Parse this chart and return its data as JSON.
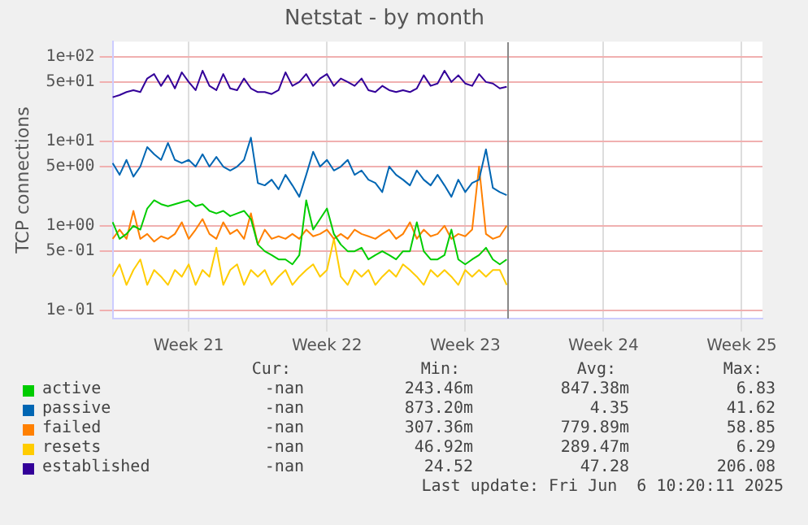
{
  "chart_data": {
    "type": "line",
    "title": "Netstat - by month",
    "ylabel": "TCP connections",
    "log": "y",
    "grid": true,
    "legend": "bottom",
    "marker": "none",
    "line_style": "solid",
    "ylim": [
      0.08,
      150
    ],
    "yticks": [
      {
        "value": 0.1,
        "label": "1e-01"
      },
      {
        "value": 0.5,
        "label": "5e-01"
      },
      {
        "value": 1,
        "label": "1e+00"
      },
      {
        "value": 5,
        "label": "5e+00"
      },
      {
        "value": 10,
        "label": "1e+01"
      },
      {
        "value": 50,
        "label": "5e+01"
      },
      {
        "value": 100,
        "label": "1e+02"
      }
    ],
    "categories": [
      null,
      null,
      null,
      null,
      null,
      null,
      null,
      null,
      null,
      null,
      null,
      "Week 21",
      null,
      null,
      null,
      null,
      null,
      null,
      null,
      null,
      null,
      null,
      null,
      null,
      null,
      null,
      null,
      null,
      null,
      null,
      null,
      "Week 22",
      null,
      null,
      null,
      null,
      null,
      null,
      null,
      null,
      null,
      null,
      null,
      null,
      null,
      null,
      null,
      null,
      null,
      null,
      null,
      "Week 23",
      null,
      null,
      null,
      null,
      null,
      null,
      null,
      null,
      null,
      null,
      null,
      null,
      null,
      null,
      null,
      null,
      null,
      null,
      null,
      "Week 24",
      null,
      null,
      null,
      null,
      null,
      null,
      null,
      null,
      null,
      null,
      null,
      null,
      null,
      null,
      null,
      null,
      null,
      null,
      null,
      "Week 25",
      null,
      null,
      null
    ],
    "series": [
      {
        "name": "active",
        "color": "#00cc00",
        "values": [
          1.1,
          0.7,
          0.8,
          1.0,
          0.9,
          1.6,
          2.0,
          1.8,
          1.7,
          1.8,
          1.9,
          2.0,
          1.7,
          1.8,
          1.5,
          1.4,
          1.5,
          1.3,
          1.4,
          1.5,
          1.2,
          0.6,
          0.5,
          0.45,
          0.4,
          0.4,
          0.35,
          0.45,
          2.0,
          0.9,
          1.2,
          1.6,
          0.8,
          0.6,
          0.5,
          0.5,
          0.55,
          0.4,
          0.45,
          0.5,
          0.45,
          0.4,
          0.5,
          0.5,
          1.1,
          0.5,
          0.4,
          0.4,
          0.45,
          0.9,
          0.4,
          0.35,
          0.4,
          0.45,
          0.55,
          0.4,
          0.35,
          0.4,
          null,
          null,
          null,
          null,
          null,
          null,
          null,
          null,
          null,
          null,
          null,
          null,
          null,
          null,
          null,
          null,
          null,
          null,
          null,
          null,
          null,
          null,
          null,
          null,
          null,
          null,
          null,
          null,
          null,
          null,
          null,
          null,
          null,
          null,
          null,
          null,
          null
        ]
      },
      {
        "name": "passive",
        "color": "#0066b3",
        "values": [
          5.5,
          4,
          6,
          3.8,
          5,
          8.5,
          7,
          6,
          9.5,
          6,
          5.5,
          6,
          5,
          7,
          5,
          6.5,
          5,
          4.5,
          5,
          6,
          11,
          3.2,
          3,
          3.5,
          2.7,
          4,
          3,
          2.2,
          4,
          7.5,
          5,
          6,
          4.5,
          5,
          6,
          4,
          4.5,
          3.5,
          3.2,
          2.5,
          5,
          4,
          3.5,
          3,
          4.5,
          3.5,
          3,
          4,
          3,
          2.2,
          3.5,
          2.5,
          3.2,
          3.5,
          8,
          2.8,
          2.5,
          2.3,
          null,
          null,
          null,
          null,
          null,
          null,
          null,
          null,
          null,
          null,
          null,
          null,
          null,
          null,
          null,
          null,
          null,
          null,
          null,
          null,
          null,
          null,
          null,
          null,
          null,
          null,
          null,
          null,
          null,
          null,
          null,
          null,
          null,
          null,
          null,
          null,
          null
        ]
      },
      {
        "name": "failed",
        "color": "#ff8000",
        "values": [
          0.7,
          0.9,
          0.7,
          1.5,
          0.7,
          0.8,
          0.65,
          0.75,
          0.7,
          0.8,
          1.1,
          0.7,
          0.9,
          1.2,
          0.8,
          0.7,
          1.1,
          0.8,
          0.9,
          0.7,
          1.4,
          0.6,
          0.9,
          0.7,
          0.75,
          0.7,
          0.8,
          0.7,
          0.9,
          0.75,
          0.8,
          0.9,
          0.7,
          0.8,
          0.7,
          0.9,
          0.8,
          0.75,
          0.7,
          0.8,
          0.9,
          0.7,
          0.8,
          1.1,
          0.7,
          0.9,
          0.75,
          0.8,
          1.0,
          0.7,
          0.8,
          0.75,
          0.9,
          5,
          0.8,
          0.7,
          0.75,
          1.0,
          null,
          null,
          null,
          null,
          null,
          null,
          null,
          null,
          null,
          null,
          null,
          null,
          null,
          null,
          null,
          null,
          null,
          null,
          null,
          null,
          null,
          null,
          null,
          null,
          null,
          null,
          null,
          null,
          null,
          null,
          null,
          null,
          null,
          null,
          null,
          null,
          null
        ]
      },
      {
        "name": "resets",
        "color": "#ffcc00",
        "values": [
          0.25,
          0.35,
          0.2,
          0.3,
          0.4,
          0.2,
          0.3,
          0.25,
          0.2,
          0.3,
          0.25,
          0.35,
          0.2,
          0.3,
          0.25,
          0.55,
          0.2,
          0.3,
          0.35,
          0.2,
          0.3,
          0.25,
          0.3,
          0.2,
          0.25,
          0.3,
          0.2,
          0.25,
          0.3,
          0.35,
          0.25,
          0.3,
          0.7,
          0.25,
          0.2,
          0.3,
          0.25,
          0.3,
          0.2,
          0.25,
          0.3,
          0.25,
          0.35,
          0.3,
          0.25,
          0.2,
          0.3,
          0.25,
          0.3,
          0.25,
          0.2,
          0.3,
          0.25,
          0.3,
          0.25,
          0.3,
          0.3,
          0.2,
          null,
          null,
          null,
          null,
          null,
          null,
          null,
          null,
          null,
          null,
          null,
          null,
          null,
          null,
          null,
          null,
          null,
          null,
          null,
          null,
          null,
          null,
          null,
          null,
          null,
          null,
          null,
          null,
          null,
          null,
          null,
          null,
          null,
          null,
          null,
          null,
          null
        ]
      },
      {
        "name": "established",
        "color": "#330099",
        "values": [
          33,
          35,
          38,
          40,
          38,
          55,
          62,
          45,
          60,
          42,
          65,
          50,
          40,
          68,
          45,
          40,
          62,
          42,
          40,
          55,
          42,
          38,
          38,
          36,
          40,
          65,
          45,
          50,
          62,
          45,
          55,
          62,
          45,
          55,
          50,
          45,
          55,
          40,
          38,
          45,
          40,
          38,
          40,
          38,
          42,
          60,
          45,
          48,
          68,
          50,
          60,
          48,
          45,
          62,
          50,
          48,
          42,
          44,
          null,
          null,
          null,
          null,
          null,
          null,
          null,
          null,
          null,
          null,
          null,
          null,
          null,
          null,
          null,
          null,
          null,
          null,
          null,
          null,
          null,
          null,
          null,
          null,
          null,
          null,
          null,
          null,
          null,
          null,
          null,
          null,
          null,
          null,
          null,
          null,
          null
        ]
      }
    ],
    "annotations": [
      "Cur:",
      "Min:",
      "Avg:",
      "Max:",
      "-nan",
      "243.46m",
      "847.38m",
      "6.83",
      "-nan",
      "873.20m",
      "4.35",
      "41.62",
      "-nan",
      "307.36m",
      "779.89m",
      "58.85",
      "-nan",
      "46.92m",
      "289.47m",
      "6.29",
      "-nan",
      "24.52",
      "47.28",
      "206.08",
      "Last update: Fri Jun  6 10:20:11 2025"
    ]
  }
}
